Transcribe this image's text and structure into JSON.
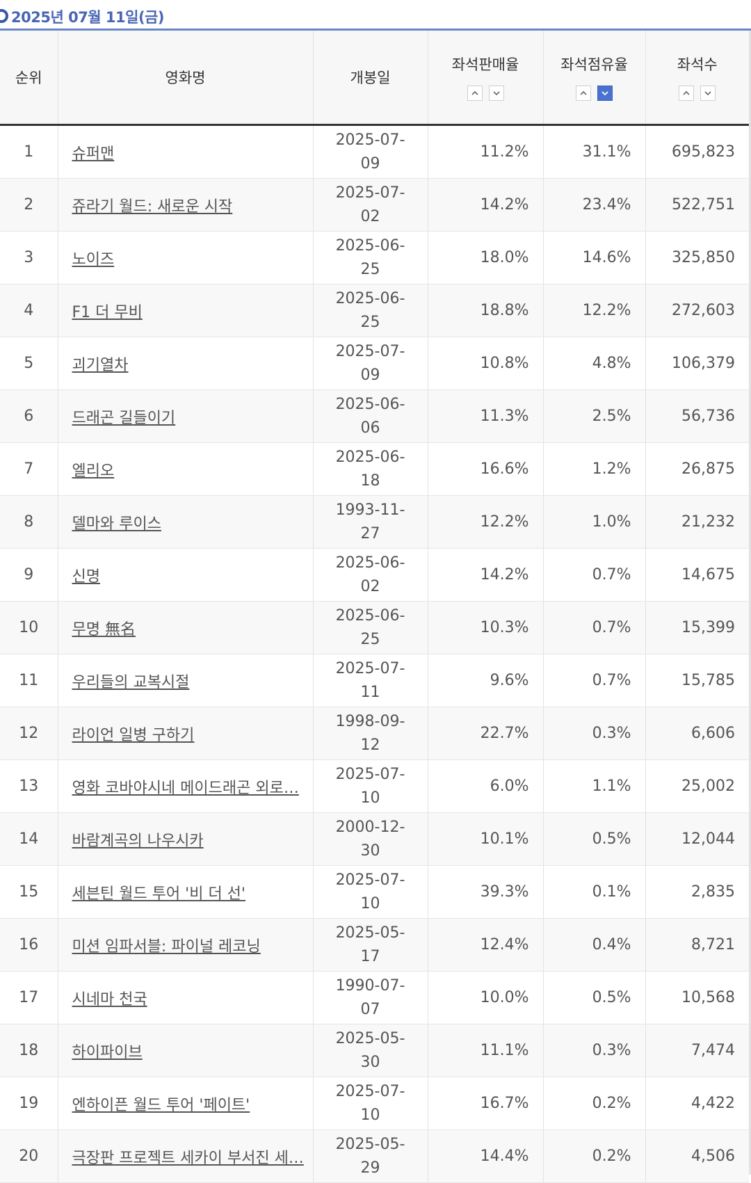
{
  "header": {
    "date": "2025년 07월 11일(금)"
  },
  "columns": {
    "rank": "순위",
    "title": "영화명",
    "release": "개봉일",
    "sales_rate": "좌석판매율",
    "occupancy": "좌석점유율",
    "seats": "좌석수"
  },
  "sort": {
    "active": "occupancy-down"
  },
  "rows": [
    {
      "rank": "1",
      "title": "슈퍼맨",
      "release": "2025-07-09",
      "sales": "11.2%",
      "occupancy": "31.1%",
      "seats": "695,823"
    },
    {
      "rank": "2",
      "title": "쥬라기 월드: 새로운 시작",
      "release": "2025-07-02",
      "sales": "14.2%",
      "occupancy": "23.4%",
      "seats": "522,751"
    },
    {
      "rank": "3",
      "title": "노이즈",
      "release": "2025-06-25",
      "sales": "18.0%",
      "occupancy": "14.6%",
      "seats": "325,850"
    },
    {
      "rank": "4",
      "title": "F1 더 무비",
      "release": "2025-06-25",
      "sales": "18.8%",
      "occupancy": "12.2%",
      "seats": "272,603"
    },
    {
      "rank": "5",
      "title": "괴기열차",
      "release": "2025-07-09",
      "sales": "10.8%",
      "occupancy": "4.8%",
      "seats": "106,379"
    },
    {
      "rank": "6",
      "title": "드래곤 길들이기",
      "release": "2025-06-06",
      "sales": "11.3%",
      "occupancy": "2.5%",
      "seats": "56,736"
    },
    {
      "rank": "7",
      "title": "엘리오",
      "release": "2025-06-18",
      "sales": "16.6%",
      "occupancy": "1.2%",
      "seats": "26,875"
    },
    {
      "rank": "8",
      "title": "델마와 루이스",
      "release": "1993-11-27",
      "sales": "12.2%",
      "occupancy": "1.0%",
      "seats": "21,232"
    },
    {
      "rank": "9",
      "title": "신명",
      "release": "2025-06-02",
      "sales": "14.2%",
      "occupancy": "0.7%",
      "seats": "14,675"
    },
    {
      "rank": "10",
      "title": "무명 無名",
      "release": "2025-06-25",
      "sales": "10.3%",
      "occupancy": "0.7%",
      "seats": "15,399"
    },
    {
      "rank": "11",
      "title": "우리들의 교복시절",
      "release": "2025-07-11",
      "sales": "9.6%",
      "occupancy": "0.7%",
      "seats": "15,785"
    },
    {
      "rank": "12",
      "title": "라이언 일병 구하기",
      "release": "1998-09-12",
      "sales": "22.7%",
      "occupancy": "0.3%",
      "seats": "6,606"
    },
    {
      "rank": "13",
      "title": "영화 코바야시네 메이드래곤 외로…",
      "release": "2025-07-10",
      "sales": "6.0%",
      "occupancy": "1.1%",
      "seats": "25,002"
    },
    {
      "rank": "14",
      "title": "바람계곡의 나우시카",
      "release": "2000-12-30",
      "sales": "10.1%",
      "occupancy": "0.5%",
      "seats": "12,044"
    },
    {
      "rank": "15",
      "title": "세븐틴 월드 투어 '비 더 선'",
      "release": "2025-07-10",
      "sales": "39.3%",
      "occupancy": "0.1%",
      "seats": "2,835"
    },
    {
      "rank": "16",
      "title": "미션 임파서블: 파이널 레코닝",
      "release": "2025-05-17",
      "sales": "12.4%",
      "occupancy": "0.4%",
      "seats": "8,721"
    },
    {
      "rank": "17",
      "title": "시네마 천국",
      "release": "1990-07-07",
      "sales": "10.0%",
      "occupancy": "0.5%",
      "seats": "10,568"
    },
    {
      "rank": "18",
      "title": "하이파이브",
      "release": "2025-05-30",
      "sales": "11.1%",
      "occupancy": "0.3%",
      "seats": "7,474"
    },
    {
      "rank": "19",
      "title": "엔하이픈 월드 투어 '페이트'",
      "release": "2025-07-10",
      "sales": "16.7%",
      "occupancy": "0.2%",
      "seats": "4,422"
    },
    {
      "rank": "20",
      "title": "극장판 프로젝트 세카이 부서진 세…",
      "release": "2025-05-29",
      "sales": "14.4%",
      "occupancy": "0.2%",
      "seats": "4,506"
    }
  ]
}
